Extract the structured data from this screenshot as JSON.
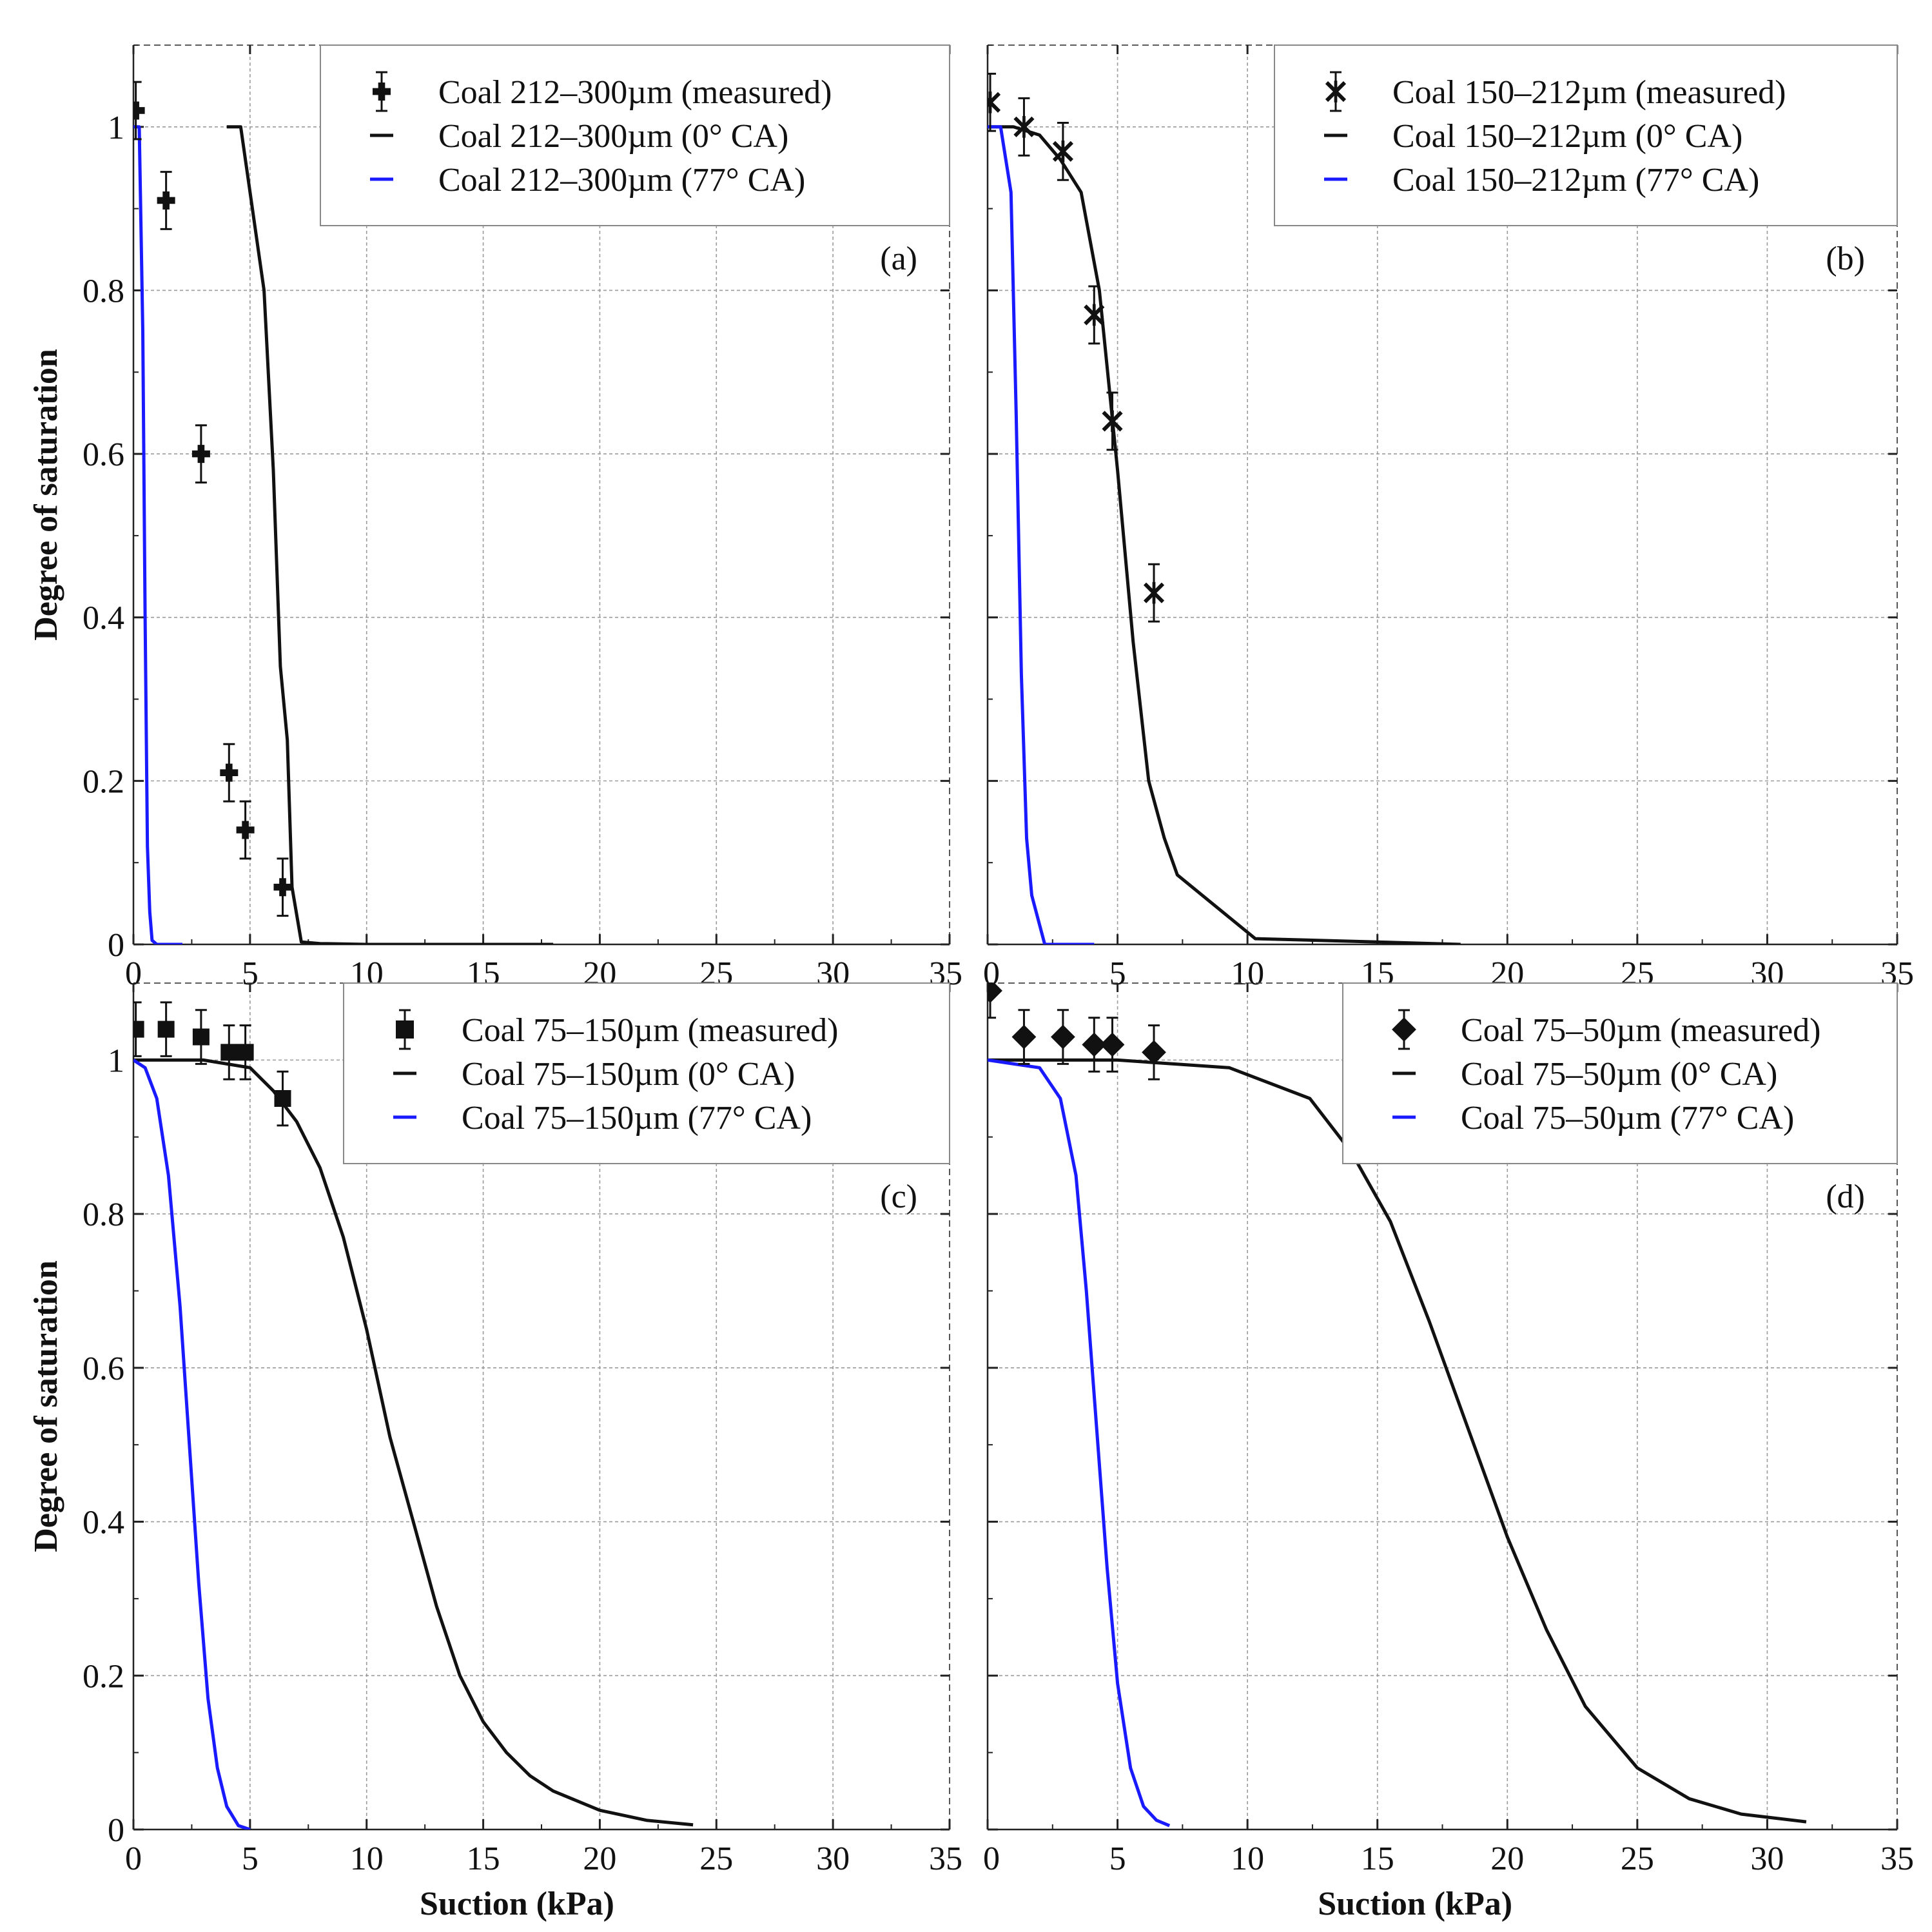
{
  "figure": {
    "xlabel": "Suction (kPa)",
    "ylabel": "Degree of saturation",
    "colors": {
      "model_0": "#111111",
      "model_77": "#1a1aff",
      "measured": "#111111"
    }
  },
  "chart_data": [
    {
      "type": "line",
      "panel": "(a)",
      "title": "",
      "xlabel": "Suction (kPa)",
      "ylabel": "Degree of saturation",
      "xlim": [
        0,
        35
      ],
      "ylim": [
        0,
        1.1
      ],
      "xticks": [
        "0",
        "5",
        "10",
        "15",
        "20",
        "25",
        "30",
        "35"
      ],
      "yticks": [
        "0",
        "0.2",
        "0.4",
        "0.6",
        "0.8",
        "1"
      ],
      "legend": "top-right",
      "series": [
        {
          "name": "Coal 212–300µm (measured)",
          "kind": "scatter",
          "marker": "plus",
          "x": [
            0.1,
            1.4,
            2.9,
            4.1,
            4.8,
            6.4
          ],
          "y": [
            1.02,
            0.91,
            0.6,
            0.21,
            0.14,
            0.07
          ],
          "err": 0.035
        },
        {
          "name": "Coal 212–300µm (0° CA)",
          "kind": "line",
          "color": "#111111",
          "x": [
            4,
            4.6,
            5.0,
            5.6,
            6.0,
            6.3,
            6.6,
            6.8,
            7.2,
            8,
            10,
            18
          ],
          "y": [
            1.0,
            1.0,
            0.92,
            0.8,
            0.58,
            0.34,
            0.25,
            0.07,
            0.003,
            0.001,
            0.0,
            0.0
          ]
        },
        {
          "name": "Coal 212–300µm (77° CA)",
          "kind": "line",
          "color": "#1a1aff",
          "x": [
            0,
            0.25,
            0.4,
            0.5,
            0.6,
            0.7,
            0.8,
            1.0,
            2.1
          ],
          "y": [
            1.0,
            1.0,
            0.75,
            0.4,
            0.12,
            0.04,
            0.005,
            0.0,
            0.0
          ]
        }
      ]
    },
    {
      "type": "line",
      "panel": "(b)",
      "title": "",
      "xlabel": "Suction (kPa)",
      "ylabel": "Degree of saturation",
      "xlim": [
        0,
        35
      ],
      "ylim": [
        0,
        1.1
      ],
      "xticks": [
        "0",
        "5",
        "10",
        "15",
        "20",
        "25",
        "30",
        "35"
      ],
      "yticks": [
        "0",
        "0.2",
        "0.4",
        "0.6",
        "0.8",
        "1"
      ],
      "legend": "top-right",
      "series": [
        {
          "name": "Coal 150–212µm (measured)",
          "kind": "scatter",
          "marker": "star",
          "x": [
            0.1,
            1.4,
            2.9,
            4.1,
            4.8,
            6.4
          ],
          "y": [
            1.03,
            1.0,
            0.97,
            0.77,
            0.64,
            0.43
          ],
          "err": 0.035
        },
        {
          "name": "Coal 150–212µm (0° CA)",
          "kind": "line",
          "color": "#111111",
          "x": [
            0,
            1.0,
            2.0,
            2.8,
            3.6,
            4.3,
            5.0,
            5.6,
            6.2,
            6.8,
            7.3,
            10.3,
            15,
            18.2
          ],
          "y": [
            1.0,
            1.0,
            0.99,
            0.96,
            0.92,
            0.8,
            0.58,
            0.37,
            0.2,
            0.13,
            0.085,
            0.007,
            0.003,
            0.0
          ]
        },
        {
          "name": "Coal 150–212µm (77° CA)",
          "kind": "line",
          "color": "#1a1aff",
          "x": [
            0,
            0.5,
            0.9,
            1.1,
            1.3,
            1.5,
            1.7,
            2.2,
            4.1
          ],
          "y": [
            1.0,
            1.0,
            0.92,
            0.65,
            0.33,
            0.13,
            0.06,
            0.0,
            0.0
          ]
        }
      ]
    },
    {
      "type": "line",
      "panel": "(c)",
      "title": "",
      "xlabel": "Suction (kPa)",
      "ylabel": "Degree of saturation",
      "xlim": [
        0,
        35
      ],
      "ylim": [
        0,
        1.1
      ],
      "xticks": [
        "0",
        "5",
        "10",
        "15",
        "20",
        "25",
        "30",
        "35"
      ],
      "yticks": [
        "0",
        "0.2",
        "0.4",
        "0.6",
        "0.8",
        "1"
      ],
      "legend": "top-right",
      "series": [
        {
          "name": "Coal 75–150µm (measured)",
          "kind": "scatter",
          "marker": "square",
          "x": [
            0.1,
            1.4,
            2.9,
            4.1,
            4.8,
            6.4
          ],
          "y": [
            1.04,
            1.04,
            1.03,
            1.01,
            1.01,
            0.95
          ],
          "err": 0.035
        },
        {
          "name": "Coal 75–150µm (0° CA)",
          "kind": "line",
          "color": "#111111",
          "x": [
            0,
            3,
            5,
            6,
            7,
            8,
            9,
            10,
            11,
            12,
            13,
            14,
            15,
            16,
            17,
            18,
            20,
            22,
            24
          ],
          "y": [
            1.0,
            1.0,
            0.99,
            0.96,
            0.92,
            0.86,
            0.77,
            0.65,
            0.51,
            0.4,
            0.29,
            0.2,
            0.14,
            0.1,
            0.07,
            0.05,
            0.025,
            0.012,
            0.006
          ]
        },
        {
          "name": "Coal 75–150µm (77° CA)",
          "kind": "line",
          "color": "#1a1aff",
          "x": [
            0,
            0.5,
            1.0,
            1.5,
            2.0,
            2.4,
            2.8,
            3.2,
            3.6,
            4.0,
            4.5,
            5.0
          ],
          "y": [
            1.0,
            0.99,
            0.95,
            0.85,
            0.68,
            0.5,
            0.32,
            0.17,
            0.08,
            0.03,
            0.005,
            0.0
          ]
        }
      ]
    },
    {
      "type": "line",
      "panel": "(d)",
      "title": "",
      "xlabel": "Suction (kPa)",
      "ylabel": "Degree of saturation",
      "xlim": [
        0,
        35
      ],
      "ylim": [
        0,
        1.1
      ],
      "xticks": [
        "0",
        "5",
        "10",
        "15",
        "20",
        "25",
        "30",
        "35"
      ],
      "yticks": [
        "0",
        "0.2",
        "0.4",
        "0.6",
        "0.8",
        "1"
      ],
      "legend": "top-right",
      "series": [
        {
          "name": "Coal 75–50µm (measured)",
          "kind": "scatter",
          "marker": "diamond",
          "x": [
            0.1,
            1.4,
            2.9,
            4.1,
            4.8,
            6.4
          ],
          "y": [
            1.09,
            1.03,
            1.03,
            1.02,
            1.02,
            1.01
          ],
          "err": 0.035
        },
        {
          "name": "Coal 75–50µm (0° CA)",
          "kind": "line",
          "color": "#111111",
          "x": [
            0,
            5,
            9.3,
            12.4,
            14,
            15.5,
            17,
            18.5,
            20,
            21.5,
            23,
            25,
            27,
            29,
            31.5
          ],
          "y": [
            1.0,
            1.0,
            0.99,
            0.95,
            0.88,
            0.79,
            0.66,
            0.52,
            0.38,
            0.26,
            0.16,
            0.08,
            0.04,
            0.02,
            0.01
          ]
        },
        {
          "name": "Coal 75–50µm (77° CA)",
          "kind": "line",
          "color": "#1a1aff",
          "x": [
            0,
            2.0,
            2.8,
            3.4,
            3.8,
            4.2,
            4.6,
            5.0,
            5.5,
            6.0,
            6.5,
            7.0
          ],
          "y": [
            1.0,
            0.99,
            0.95,
            0.85,
            0.7,
            0.52,
            0.34,
            0.19,
            0.08,
            0.03,
            0.012,
            0.005
          ]
        }
      ]
    }
  ]
}
